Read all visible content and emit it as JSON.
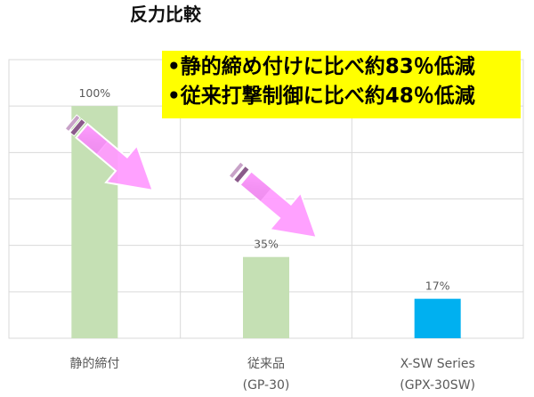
{
  "chart_data": {
    "type": "bar",
    "title": "反力比較",
    "categories": [
      [
        "静的締付"
      ],
      [
        "従来品",
        "(GP-30)"
      ],
      [
        "X-SW Series",
        "(GPX-30SW)"
      ]
    ],
    "values": [
      100,
      35,
      17
    ],
    "data_labels": [
      "100%",
      "35%",
      "17%"
    ],
    "bar_colors": [
      "#c5e0b4",
      "#c5e0b4",
      "#00b0f0"
    ],
    "ylim": [
      0,
      120
    ],
    "grid": true,
    "xlabel": "",
    "ylabel": ""
  },
  "callout": {
    "lines": [
      "•静的締め付けに比べ約83％低減",
      "•従来打撃制御に比べ約48％低減"
    ],
    "background": "#ffff00"
  },
  "arrows": {
    "icon": "arrow-down-right-icon",
    "fill": "#ff99ff",
    "stroke": "#ffffff"
  }
}
